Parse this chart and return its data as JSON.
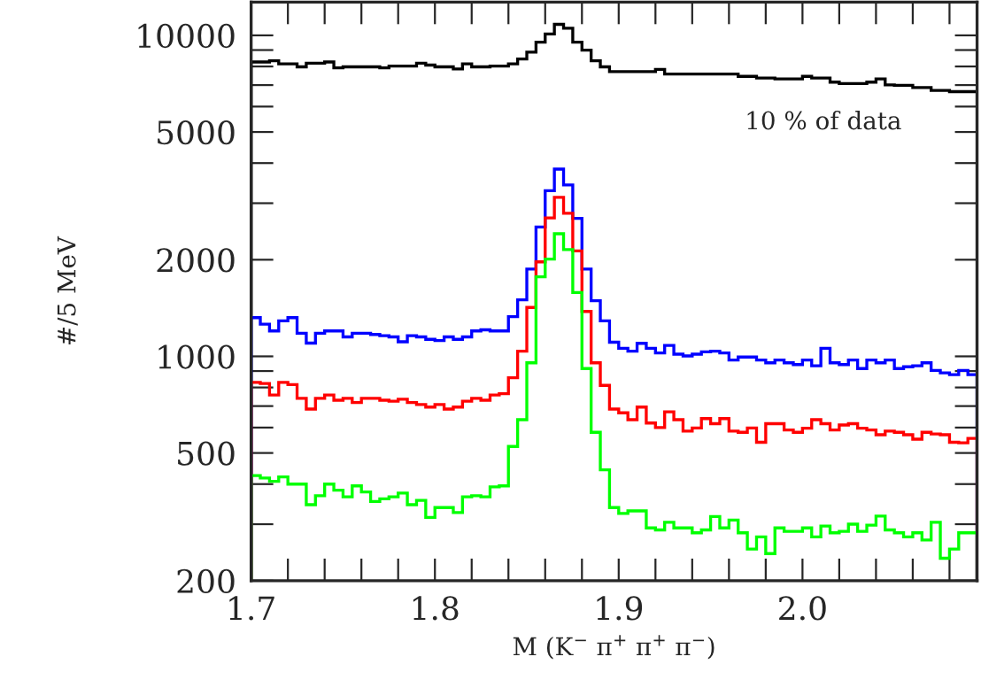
{
  "chart_data": {
    "type": "histogram",
    "xlabel": "M (K$^{−}$ π$^{+}$ π$^{+}$ π$^{−}$)",
    "ylabel": "#/5 MeV",
    "annotations": [
      "10 % of data"
    ],
    "log": "y",
    "xlim": [
      1.7,
      2.095
    ],
    "xticks": [
      {
        "value": 1.7,
        "label": "1.7"
      },
      {
        "value": 1.72,
        "label": null
      },
      {
        "value": 1.74,
        "label": null
      },
      {
        "value": 1.76,
        "label": null
      },
      {
        "value": 1.78,
        "label": null
      },
      {
        "value": 1.8,
        "label": "1.8"
      },
      {
        "value": 1.82,
        "label": null
      },
      {
        "value": 1.84,
        "label": null
      },
      {
        "value": 1.86,
        "label": null
      },
      {
        "value": 1.88,
        "label": null
      },
      {
        "value": 1.9,
        "label": "1.9"
      },
      {
        "value": 1.92,
        "label": null
      },
      {
        "value": 1.94,
        "label": null
      },
      {
        "value": 1.96,
        "label": null
      },
      {
        "value": 1.98,
        "label": null
      },
      {
        "value": 2.0,
        "label": "2.0"
      },
      {
        "value": 2.02,
        "label": null
      },
      {
        "value": 2.04,
        "label": null
      },
      {
        "value": 2.06,
        "label": null
      },
      {
        "value": 2.08,
        "label": null
      }
    ],
    "ylim": [
      200,
      12700
    ],
    "yticks": [
      200,
      {
        "value": 300,
        "label": null
      },
      {
        "value": 400,
        "label": null
      },
      500,
      {
        "value": 600,
        "label": null
      },
      {
        "value": 700,
        "label": null
      },
      {
        "value": 800,
        "label": null
      },
      {
        "value": 900,
        "label": null
      },
      1000,
      2000,
      {
        "value": 3000,
        "label": null
      },
      {
        "value": 4000,
        "label": null
      },
      5000,
      {
        "value": 6000,
        "label": null
      },
      {
        "value": 7000,
        "label": null
      },
      {
        "value": 8000,
        "label": null
      },
      {
        "value": 9000,
        "label": null
      },
      10000
    ],
    "bins": [
      1.7,
      1.705,
      1.71,
      1.715,
      1.72,
      1.725,
      1.73,
      1.735,
      1.74,
      1.745,
      1.75,
      1.755,
      1.76,
      1.765,
      1.77,
      1.775,
      1.78,
      1.785,
      1.79,
      1.795,
      1.8,
      1.805,
      1.81,
      1.815,
      1.82,
      1.825,
      1.83,
      1.835,
      1.84,
      1.845,
      1.85,
      1.855,
      1.86,
      1.865,
      1.87,
      1.875,
      1.88,
      1.885,
      1.89,
      1.895,
      1.9,
      1.905,
      1.91,
      1.915,
      1.92,
      1.925,
      1.93,
      1.935,
      1.94,
      1.945,
      1.95,
      1.955,
      1.96,
      1.965,
      1.97,
      1.975,
      1.98,
      1.985,
      1.99,
      1.995,
      2.0,
      2.005,
      2.01,
      2.015,
      2.02,
      2.025,
      2.03,
      2.035,
      2.04,
      2.045,
      2.05,
      2.055,
      2.06,
      2.065,
      2.07,
      2.075,
      2.08,
      2.085,
      2.09,
      2.095
    ],
    "series": [
      {
        "color": "#000000",
        "values": [
          8260,
          8260,
          8330,
          8150,
          8150,
          7980,
          8190,
          8190,
          8260,
          7920,
          7980,
          7980,
          7980,
          7980,
          7920,
          8020,
          8020,
          8020,
          8190,
          8080,
          7980,
          7980,
          7860,
          8150,
          7980,
          7980,
          8020,
          8020,
          8150,
          8440,
          8870,
          9520,
          10100,
          10820,
          10520,
          9520,
          8990,
          8330,
          7980,
          7710,
          7710,
          7710,
          7710,
          7710,
          7830,
          7580,
          7580,
          7580,
          7580,
          7580,
          7580,
          7580,
          7580,
          7450,
          7450,
          7360,
          7360,
          7320,
          7320,
          7320,
          7450,
          7360,
          7360,
          7150,
          7080,
          7080,
          7080,
          7150,
          7320,
          7010,
          6990,
          6990,
          6880,
          6880,
          6740,
          6740,
          6680,
          6680,
          6680
        ]
      },
      {
        "color": "#0000ff",
        "values": [
          1320,
          1260,
          1200,
          1290,
          1320,
          1180,
          1100,
          1180,
          1200,
          1200,
          1150,
          1180,
          1180,
          1170,
          1160,
          1150,
          1110,
          1160,
          1150,
          1130,
          1120,
          1150,
          1130,
          1150,
          1200,
          1210,
          1200,
          1200,
          1330,
          1500,
          1870,
          2530,
          3280,
          3830,
          3420,
          2690,
          1870,
          1490,
          1290,
          1107,
          1060,
          1038,
          1098,
          1060,
          1025,
          1082,
          1016,
          1003,
          1016,
          1033,
          1038,
          1025,
          974,
          995,
          995,
          974,
          955,
          974,
          955,
          943,
          974,
          935,
          1060,
          955,
          943,
          974,
          916,
          974,
          955,
          974,
          916,
          928,
          935,
          955,
          904,
          888,
          877,
          904,
          877
        ]
      },
      {
        "color": "#ff0000",
        "values": [
          830,
          823,
          758,
          830,
          817,
          740,
          685,
          740,
          758,
          730,
          740,
          718,
          740,
          740,
          730,
          725,
          735,
          718,
          708,
          695,
          708,
          685,
          695,
          725,
          740,
          730,
          758,
          765,
          858,
          1038,
          1420,
          1970,
          2700,
          3130,
          2790,
          2130,
          1380,
          955,
          812,
          685,
          667,
          635,
          695,
          620,
          600,
          672,
          635,
          585,
          598,
          640,
          617,
          640,
          585,
          580,
          598,
          540,
          617,
          617,
          590,
          580,
          597,
          635,
          617,
          590,
          611,
          617,
          597,
          590,
          570,
          585,
          580,
          570,
          552,
          580,
          573,
          570,
          540,
          538,
          555
        ]
      },
      {
        "color": "#00ff00",
        "values": [
          425,
          418,
          408,
          421,
          400,
          400,
          345,
          368,
          400,
          383,
          365,
          395,
          378,
          353,
          360,
          365,
          375,
          345,
          356,
          315,
          338,
          338,
          326,
          365,
          368,
          365,
          392,
          395,
          524,
          635,
          955,
          1770,
          2010,
          2410,
          2150,
          1580,
          916,
          580,
          443,
          338,
          324,
          330,
          330,
          292,
          288,
          304,
          292,
          292,
          282,
          288,
          317,
          292,
          309,
          282,
          251,
          274,
          243,
          292,
          285,
          285,
          292,
          274,
          296,
          282,
          285,
          300,
          285,
          298,
          318,
          288,
          282,
          274,
          282,
          268,
          304,
          235,
          251,
          282,
          282
        ]
      }
    ]
  }
}
